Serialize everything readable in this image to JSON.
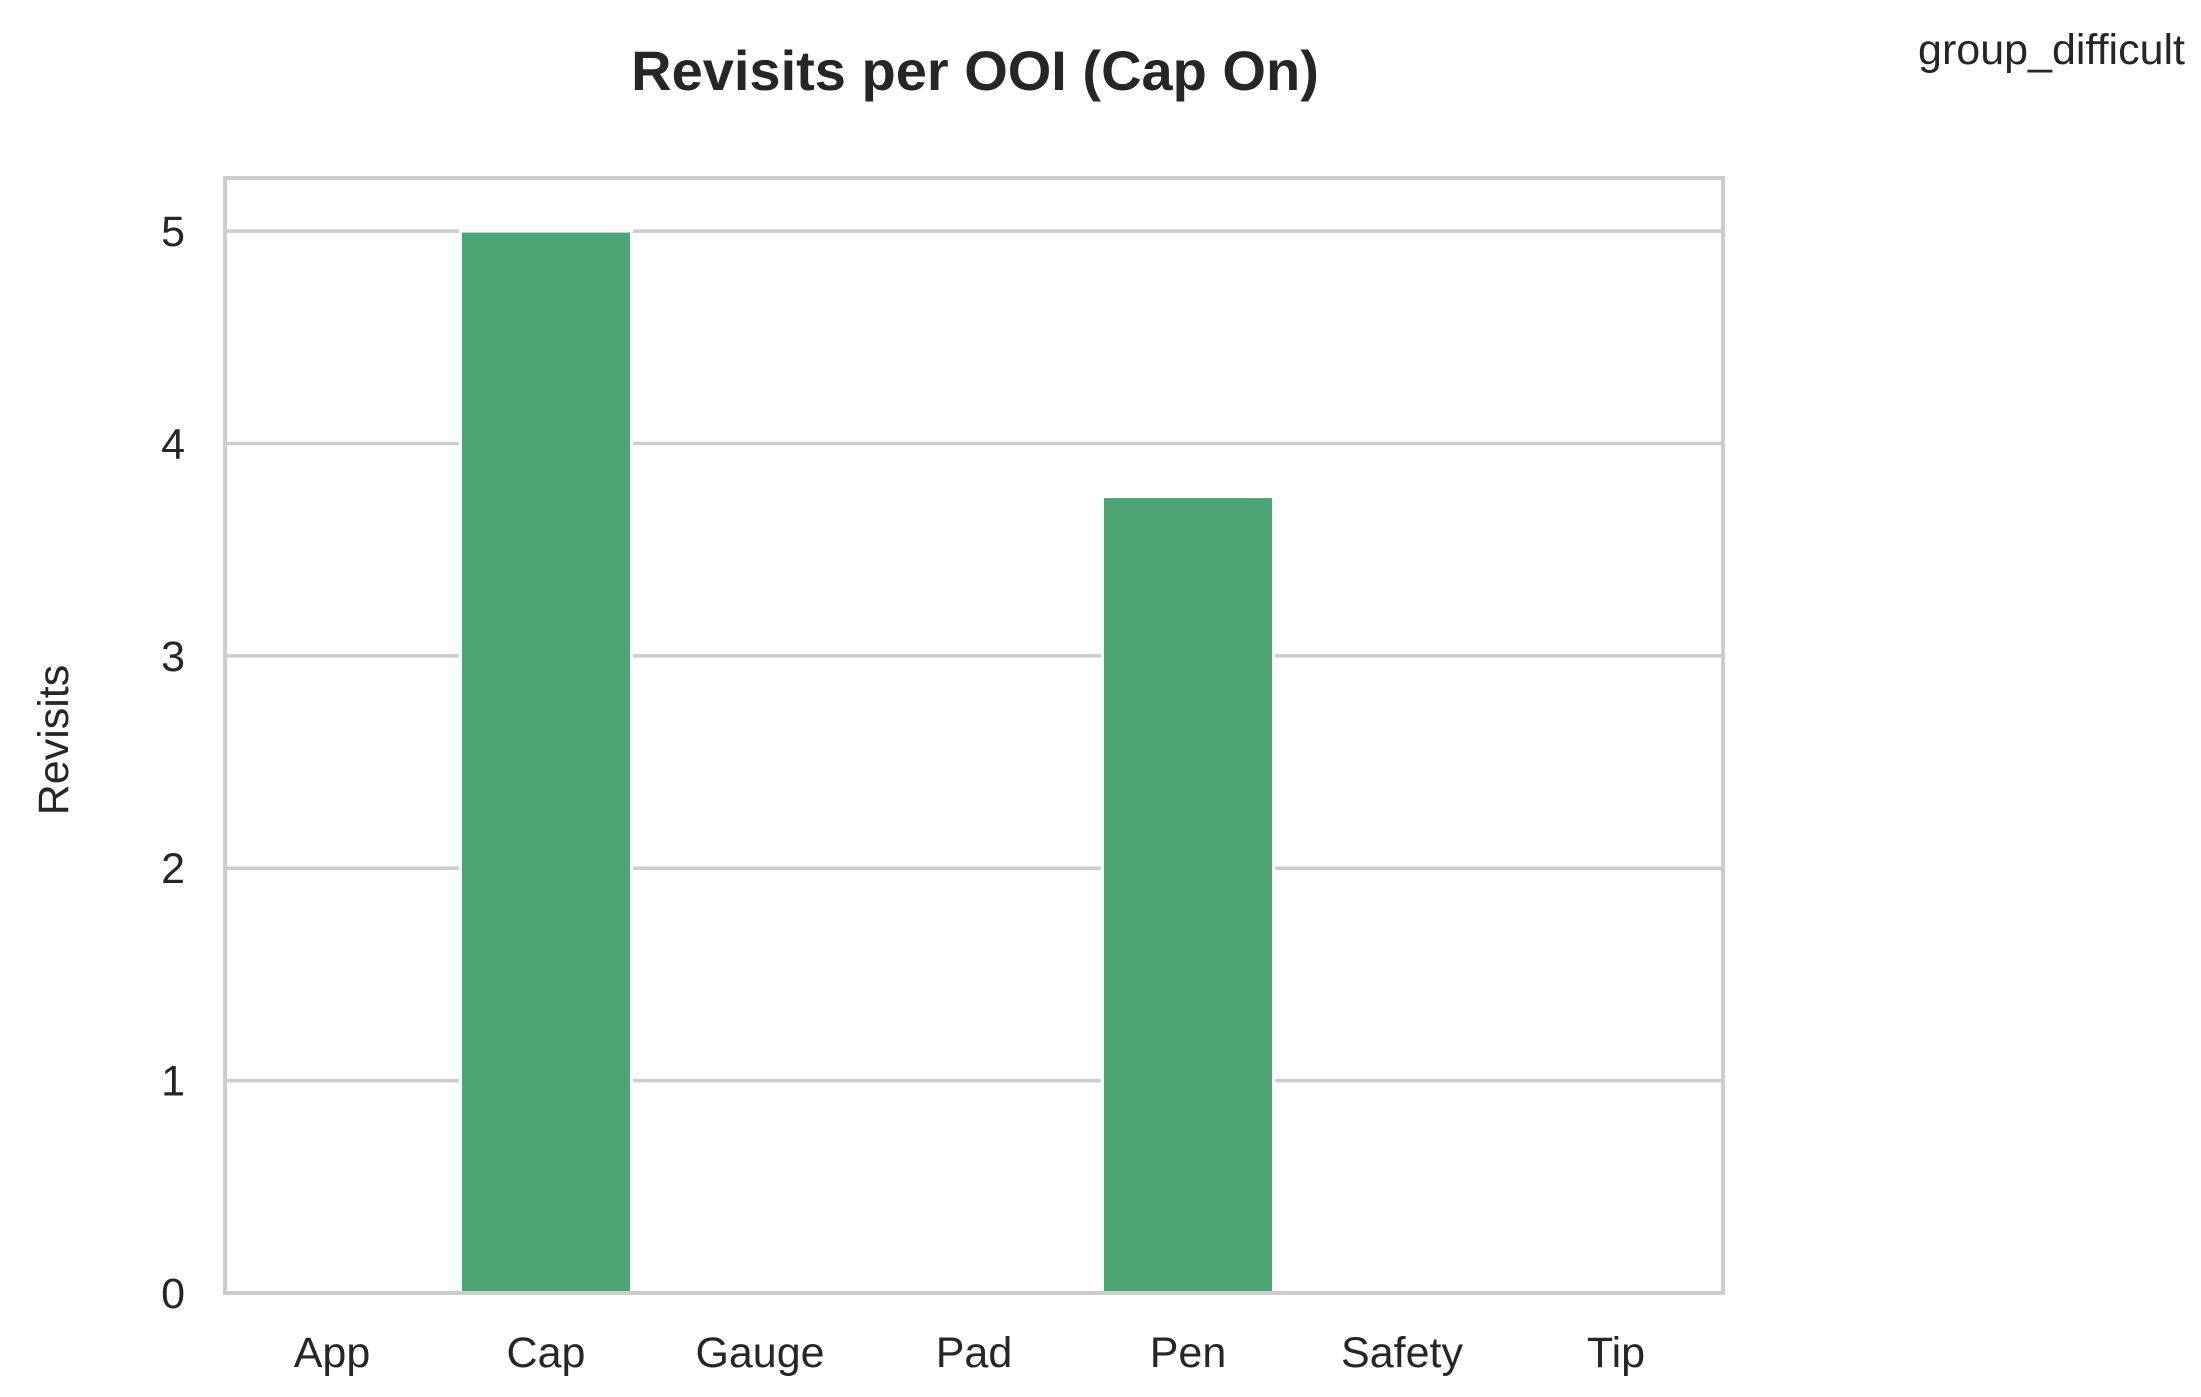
{
  "chart_data": {
    "type": "bar",
    "title": "Revisits per OOI (Cap On)",
    "xlabel": "",
    "ylabel": "Revisits",
    "categories": [
      "App",
      "Cap",
      "Gauge",
      "Pad",
      "Pen",
      "Safety",
      "Tip"
    ],
    "values": [
      0,
      5,
      0,
      0,
      3.75,
      0,
      0
    ],
    "ylim": [
      0,
      5.25
    ],
    "yticks": [
      "0",
      "1",
      "2",
      "3",
      "4",
      "5"
    ],
    "grid": "horizontal",
    "legend_title": "group_difficult",
    "legend_placement": "top-right",
    "bar_color": "#4ca574",
    "grid_color": "#cccccc",
    "text_color": "#262626"
  }
}
